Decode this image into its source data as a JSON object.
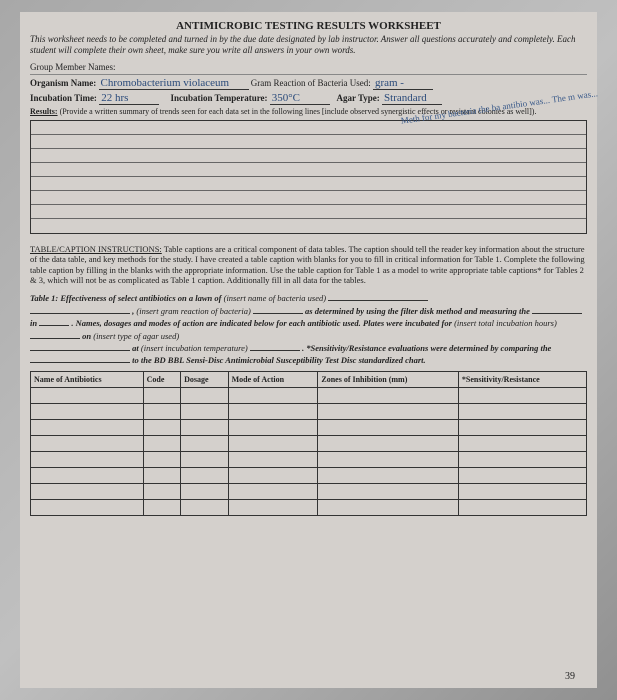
{
  "title": "ANTIMICROBIC TESTING RESULTS WORKSHEET",
  "intro": "This worksheet needs to be completed and turned in by the due date designated by lab instructor. Answer all questions accurately and completely. Each student will complete their own sheet, make sure you write all answers in your own words.",
  "groupLabel": "Group Member Names:",
  "organism": {
    "label": "Organism Name:",
    "value": "Chromobacterium violaceum"
  },
  "gramReaction": {
    "label": "Gram Reaction of Bacteria Used:",
    "value": "gram -"
  },
  "incubationTime": {
    "label": "Incubation Time:",
    "value": "22 hrs"
  },
  "incubationTemp": {
    "label": "Incubation Temperature:",
    "value": "350°C"
  },
  "agarType": {
    "label": "Agar Type:",
    "value": "Strandard"
  },
  "resultsLabel": "Results:",
  "resultsNote": "(Provide a written summary of trends seen for each data set in the following lines [include observed synergistic effects or resistant colonies as well]).",
  "sideNote": "Meth\nfor my\nbacteria\nthe ba\nantibio\nwas...\nThe m\nwas...",
  "instructionsLabel": "TABLE/CAPTION INSTRUCTIONS:",
  "instructionsText": "Table captions are a critical component of data tables. The caption should tell the reader key information about the structure of the data table, and key methods for the study. I have created a table caption with blanks for you to fill in critical information for Table 1. Complete the following table caption by filling in the blanks with the appropriate information. Use the table caption for Table 1 as a model to write appropriate table captions* for Tables 2 & 3, which will not be as complicated as Table 1 caption. Additionally fill in all data for the tables.",
  "caption": {
    "line1a": "Table 1: Effectiveness of select antibiotics on a lawn of",
    "hint1": "(insert name of bacteria used)",
    "line2a": ",",
    "hint2": "(insert gram reaction of bacteria)",
    "line2b": "as determined by using the filter disk method and measuring the",
    "line3a": "in",
    "line3b": ". Names, dosages and modes of action are indicated below for each antibiotic used. Plates were incubated for",
    "hint3": "(insert total incubation hours)",
    "line4a": "on",
    "hint4": "(insert type of agar used)",
    "line5a": "at",
    "hint5": "(insert incubation temperature)",
    "line5b": ". *Sensitivity/Resistance evaluations were determined by comparing the",
    "line6": "to the BD BBL Sensi-Disc Antimicrobial Susceptibility Test Disc standardized chart."
  },
  "table": {
    "headers": [
      "Name of Antibiotics",
      "Code",
      "Dosage",
      "Mode of Action",
      "Zones of Inhibition (mm)",
      "*Sensitivity/Resistance"
    ],
    "rowCount": 8
  },
  "pageNumber": "39"
}
